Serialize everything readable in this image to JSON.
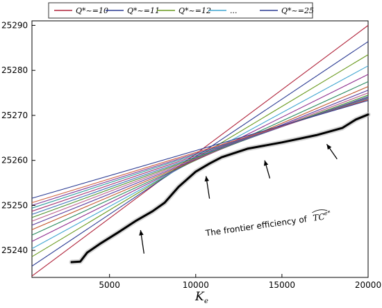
{
  "chart_data": {
    "type": "line",
    "title": "",
    "xlabel": "K",
    "xlabel_sub": "e",
    "ylabel": "",
    "xlim": [
      500,
      20000
    ],
    "ylim": [
      25234,
      25291
    ],
    "x_ticks": [
      5000,
      10000,
      15000,
      20000
    ],
    "x_tick_labels": [
      "5000",
      "10000",
      "15000",
      "20000"
    ],
    "y_ticks": [
      25240,
      25250,
      25260,
      25270,
      25280,
      25290
    ],
    "y_tick_labels": [
      "25240",
      "25250",
      "25260",
      "25270",
      "25280",
      "25290"
    ],
    "grid": false,
    "legend_position": "top",
    "legend": [
      {
        "label": "Q*~=10",
        "color": "#b0233a"
      },
      {
        "label": "Q*~=11",
        "color": "#2b3b93"
      },
      {
        "label": "Q*~=12",
        "color": "#6a9a1f"
      },
      {
        "label": "...",
        "color": "#3fa5d0"
      },
      {
        "label": "Q*~=25",
        "color": "#2b3b93"
      }
    ],
    "series": [
      {
        "name": "Q*~=10",
        "color": "#b0233a",
        "x": [
          500,
          20000
        ],
        "values": [
          25234.3,
          25290.0
        ]
      },
      {
        "name": "Q*~=11",
        "color": "#2b3b93",
        "x": [
          500,
          20000
        ],
        "values": [
          25236.5,
          25286.4
        ]
      },
      {
        "color": "#6a9a1f",
        "x": [
          500,
          20000
        ],
        "values": [
          25238.6,
          25283.5
        ]
      },
      {
        "color": "#3fa5d0",
        "x": [
          500,
          20000
        ],
        "values": [
          25240.4,
          25281.0
        ]
      },
      {
        "color": "#8e2d8e",
        "x": [
          500,
          20000
        ],
        "values": [
          25242.0,
          25279.1
        ]
      },
      {
        "color": "#2a8a5e",
        "x": [
          500,
          20000
        ],
        "values": [
          25243.4,
          25277.5
        ]
      },
      {
        "color": "#c0542a",
        "x": [
          500,
          20000
        ],
        "values": [
          25244.6,
          25276.4
        ]
      },
      {
        "color": "#5b3fa0",
        "x": [
          500,
          20000
        ],
        "values": [
          25245.6,
          25275.6
        ]
      },
      {
        "color": "#b85b8a",
        "x": [
          500,
          20000
        ],
        "values": [
          25246.5,
          25275.0
        ]
      },
      {
        "color": "#4b8f2b",
        "x": [
          500,
          20000
        ],
        "values": [
          25247.3,
          25274.5
        ]
      },
      {
        "color": "#3a6fb5",
        "x": [
          500,
          20000
        ],
        "values": [
          25248.0,
          25274.2
        ]
      },
      {
        "color": "#a03070",
        "x": [
          500,
          20000
        ],
        "values": [
          25248.7,
          25274.0
        ]
      },
      {
        "color": "#2a9a9a",
        "x": [
          500,
          20000
        ],
        "values": [
          25249.4,
          25273.8
        ]
      },
      {
        "color": "#7a3a9a",
        "x": [
          500,
          20000
        ],
        "values": [
          25250.0,
          25273.6
        ]
      },
      {
        "color": "#d06040",
        "x": [
          500,
          20000
        ],
        "values": [
          25250.6,
          25273.5
        ]
      },
      {
        "name": "Q*~=25",
        "color": "#2b3b93",
        "x": [
          500,
          20000
        ],
        "values": [
          25251.6,
          25273.3
        ]
      }
    ],
    "frontier": {
      "color": "#000000",
      "x": [
        2800,
        3300,
        3700,
        4500,
        5500,
        6500,
        7500,
        8200,
        9000,
        10000,
        10800,
        11500,
        13000,
        15000,
        17000,
        18500,
        19300,
        20000
      ],
      "values": [
        25237.4,
        25237.5,
        25239.5,
        25241.6,
        25244.0,
        25246.5,
        25248.7,
        25250.6,
        25254.1,
        25257.5,
        25259.3,
        25260.7,
        25262.6,
        25264.0,
        25265.6,
        25267.2,
        25269.1,
        25270.2
      ]
    },
    "annotations": [
      {
        "text": "The frontier efficiency of",
        "x": 9700,
        "y": 25244.6
      },
      {
        "symbol": "TC",
        "superscript": "e*"
      }
    ],
    "arrows": [
      {
        "from": [
          7000,
          25239.3
        ],
        "to": [
          6800,
          25244.5
        ]
      },
      {
        "from": [
          10800,
          25251.5
        ],
        "to": [
          10600,
          25256.5
        ]
      },
      {
        "from": [
          14300,
          25256.0
        ],
        "to": [
          14000,
          25260.0
        ]
      },
      {
        "from": [
          18200,
          25260.3
        ],
        "to": [
          17600,
          25263.6
        ]
      }
    ]
  }
}
